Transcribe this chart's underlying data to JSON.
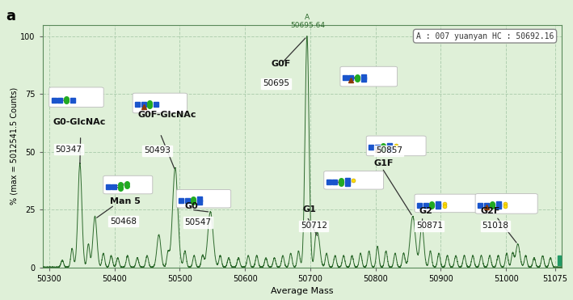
{
  "title": "a",
  "xlabel": "Average Mass",
  "ylabel": "% (max = 5012541.5 Counts)",
  "xlim": [
    50290,
    51085
  ],
  "ylim": [
    0,
    105
  ],
  "bg_color": "#dff0d8",
  "grid_color": "#b0cfb0",
  "line_color": "#2d6a2d",
  "annotation_top": "A\n50695.64",
  "annotation_box": "A : 007 yuanyan HC : 50692.16",
  "yticks": [
    0,
    25,
    50,
    75,
    100
  ],
  "xticks": [
    50300,
    50400,
    50500,
    50600,
    50700,
    50800,
    50900,
    51000,
    51075
  ],
  "peak_data": [
    [
      50320,
      3,
      2
    ],
    [
      50335,
      8,
      2
    ],
    [
      50347,
      45,
      3
    ],
    [
      50360,
      10,
      2
    ],
    [
      50370,
      22,
      3
    ],
    [
      50383,
      6,
      2
    ],
    [
      50395,
      5,
      2
    ],
    [
      50405,
      4,
      2
    ],
    [
      50420,
      5,
      2
    ],
    [
      50435,
      4,
      2
    ],
    [
      50450,
      5,
      2
    ],
    [
      50468,
      14,
      3
    ],
    [
      50482,
      6,
      2
    ],
    [
      50493,
      43,
      4
    ],
    [
      50508,
      7,
      2
    ],
    [
      50522,
      5,
      2
    ],
    [
      50535,
      5,
      2
    ],
    [
      50547,
      24,
      4
    ],
    [
      50562,
      5,
      2
    ],
    [
      50575,
      4,
      2
    ],
    [
      50590,
      4,
      2
    ],
    [
      50605,
      5,
      2
    ],
    [
      50618,
      5,
      2
    ],
    [
      50632,
      4,
      2
    ],
    [
      50645,
      4,
      2
    ],
    [
      50658,
      5,
      2
    ],
    [
      50670,
      6,
      2
    ],
    [
      50682,
      7,
      2
    ],
    [
      50695,
      100,
      3
    ],
    [
      50708,
      8,
      2
    ],
    [
      50712,
      13,
      3
    ],
    [
      50725,
      6,
      2
    ],
    [
      50738,
      5,
      2
    ],
    [
      50751,
      5,
      2
    ],
    [
      50764,
      5,
      2
    ],
    [
      50777,
      6,
      2
    ],
    [
      50790,
      7,
      2
    ],
    [
      50803,
      9,
      2
    ],
    [
      50816,
      7,
      2
    ],
    [
      50830,
      6,
      2
    ],
    [
      50843,
      6,
      2
    ],
    [
      50857,
      22,
      4
    ],
    [
      50871,
      18,
      3
    ],
    [
      50884,
      7,
      2
    ],
    [
      50897,
      6,
      2
    ],
    [
      50910,
      5,
      2
    ],
    [
      50923,
      5,
      2
    ],
    [
      50936,
      5,
      2
    ],
    [
      50949,
      5,
      2
    ],
    [
      50962,
      5,
      2
    ],
    [
      50975,
      5,
      2
    ],
    [
      50988,
      5,
      2
    ],
    [
      51001,
      6,
      2
    ],
    [
      51010,
      6,
      2
    ],
    [
      51018,
      10,
      3
    ],
    [
      51030,
      5,
      2
    ],
    [
      51043,
      4,
      2
    ],
    [
      51056,
      5,
      2
    ],
    [
      51068,
      4,
      2
    ]
  ]
}
